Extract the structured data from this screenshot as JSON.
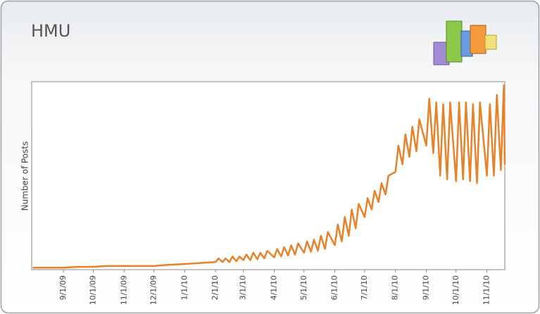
{
  "chart_data": {
    "type": "line",
    "title": "HMU",
    "y_label": "Number of Posts",
    "x": [
      "8/1/09",
      "8/15/09",
      "9/1/09",
      "9/15/09",
      "10/1/09",
      "10/15/09",
      "11/1/09",
      "11/15/09",
      "12/1/09",
      "12/15/09",
      "1/1/10",
      "1/15/10",
      "2/1/10",
      "2/4/10",
      "2/8/10",
      "2/11/10",
      "2/15/10",
      "2/18/10",
      "2/22/10",
      "2/25/10",
      "3/1/10",
      "3/4/10",
      "3/8/10",
      "3/11/10",
      "3/15/10",
      "3/18/10",
      "3/22/10",
      "3/25/10",
      "4/1/10",
      "4/4/10",
      "4/8/10",
      "4/11/10",
      "4/15/10",
      "4/18/10",
      "4/22/10",
      "4/25/10",
      "5/1/10",
      "5/4/10",
      "5/8/10",
      "5/11/10",
      "5/15/10",
      "5/18/10",
      "5/22/10",
      "5/25/10",
      "6/1/10",
      "6/4/10",
      "6/8/10",
      "6/11/10",
      "6/15/10",
      "6/18/10",
      "6/22/10",
      "6/25/10",
      "7/1/10",
      "7/4/10",
      "7/8/10",
      "7/11/10",
      "7/15/10",
      "7/18/10",
      "7/22/10",
      "7/25/10",
      "8/1/10",
      "8/4/10",
      "8/8/10",
      "8/11/10",
      "8/15/10",
      "8/18/10",
      "8/22/10",
      "8/25/10",
      "9/1/10",
      "9/4/10",
      "9/8/10",
      "9/11/10",
      "9/15/10",
      "9/18/10",
      "9/22/10",
      "9/25/10",
      "10/1/10",
      "10/4/10",
      "10/8/10",
      "10/11/10",
      "10/15/10",
      "10/18/10",
      "10/22/10",
      "10/25/10",
      "11/1/10",
      "11/4/10",
      "11/8/10",
      "11/11/10",
      "11/15/10",
      "11/18/10",
      "11/19/10"
    ],
    "values": [
      1,
      1,
      1,
      1.5,
      1.5,
      2,
      2,
      2,
      2,
      2.5,
      3,
      3.5,
      4,
      6,
      4,
      6,
      4,
      7,
      4.5,
      7,
      5,
      8,
      5,
      9,
      5.5,
      9,
      6,
      10,
      6.5,
      11,
      7,
      12,
      7.5,
      13,
      8,
      14,
      9,
      15,
      9.5,
      16,
      10,
      18,
      11,
      20,
      13,
      24,
      15,
      28,
      18,
      32,
      22,
      35,
      28,
      38,
      32,
      42,
      36,
      46,
      40,
      50,
      52,
      66,
      56,
      72,
      60,
      76,
      63,
      80,
      66,
      91,
      62,
      89,
      50,
      88,
      48,
      89,
      47,
      89,
      48,
      89,
      47,
      88,
      46,
      89,
      50,
      88,
      50,
      93,
      53,
      98,
      56
    ],
    "color": "#e8822a",
    "xlim": [
      "7/31/09",
      "11/19/10"
    ],
    "ylim": [
      0,
      100
    ],
    "xticks": [
      "9/1/09",
      "10/1/09",
      "11/1/09",
      "12/1/09",
      "1/1/10",
      "2/1/10",
      "3/1/10",
      "4/1/10",
      "5/1/10",
      "6/1/10",
      "7/1/10",
      "8/1/10",
      "9/1/10",
      "10/1/10",
      "11/1/10"
    ]
  }
}
